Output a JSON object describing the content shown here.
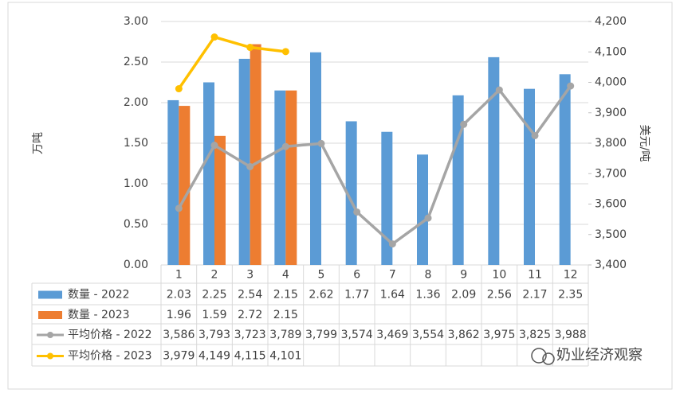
{
  "chart_data": {
    "type": "bar_line_table",
    "categories": [
      "1",
      "2",
      "3",
      "4",
      "5",
      "6",
      "7",
      "8",
      "9",
      "10",
      "11",
      "12"
    ],
    "series": [
      {
        "name": "数量 - 2022",
        "type": "bar",
        "color": "#5b9bd5",
        "values": [
          2.03,
          2.25,
          2.54,
          2.15,
          2.62,
          1.77,
          1.64,
          1.36,
          2.09,
          2.56,
          2.17,
          2.35
        ]
      },
      {
        "name": "数量 - 2023",
        "type": "bar",
        "color": "#ed7d31",
        "values": [
          1.96,
          1.59,
          2.72,
          2.15,
          null,
          null,
          null,
          null,
          null,
          null,
          null,
          null
        ]
      },
      {
        "name": "平均价格 - 2022",
        "type": "line",
        "axis": "y2",
        "color": "#a5a5a5",
        "values": [
          3586,
          3793,
          3723,
          3789,
          3799,
          3574,
          3469,
          3554,
          3862,
          3975,
          3825,
          3988
        ],
        "value_labels": [
          "3,586",
          "3,793",
          "3,723",
          "3,789",
          "3,799",
          "3,574",
          "3,469",
          "3,554",
          "3,862",
          "3,975",
          "3,825",
          "3,988"
        ]
      },
      {
        "name": "平均价格 - 2023",
        "type": "line",
        "axis": "y2",
        "color": "#ffc000",
        "values": [
          3979,
          4149,
          4115,
          4101,
          null,
          null,
          null,
          null,
          null,
          null,
          null,
          null
        ],
        "value_labels": [
          "3,979",
          "4,149",
          "4,115",
          "4,101",
          null,
          null,
          null,
          null,
          null,
          null,
          null,
          null
        ]
      }
    ],
    "y_label": "万吨",
    "y2_label": "美元/吨",
    "ylim": [
      0,
      3
    ],
    "yticks": [
      {
        "value": 0,
        "label": "0.00"
      },
      {
        "value": 0.5,
        "label": "0.50"
      },
      {
        "value": 1,
        "label": "1.00"
      },
      {
        "value": 1.5,
        "label": "1.50"
      },
      {
        "value": 2,
        "label": "2.00"
      },
      {
        "value": 2.5,
        "label": "2.50"
      },
      {
        "value": 3,
        "label": "3.00"
      }
    ],
    "y2lim": [
      3400,
      4200
    ],
    "y2ticks": [
      {
        "value": 3400,
        "label": "3,400"
      },
      {
        "value": 3500,
        "label": "3,500"
      },
      {
        "value": 3600,
        "label": "3,600"
      },
      {
        "value": 3700,
        "label": "3,700"
      },
      {
        "value": 3800,
        "label": "3,800"
      },
      {
        "value": 3900,
        "label": "3,900"
      },
      {
        "value": 4000,
        "label": "4,000"
      },
      {
        "value": 4100,
        "label": "4,100"
      },
      {
        "value": 4200,
        "label": "4,200"
      }
    ],
    "watermark": "奶业经济观察"
  }
}
